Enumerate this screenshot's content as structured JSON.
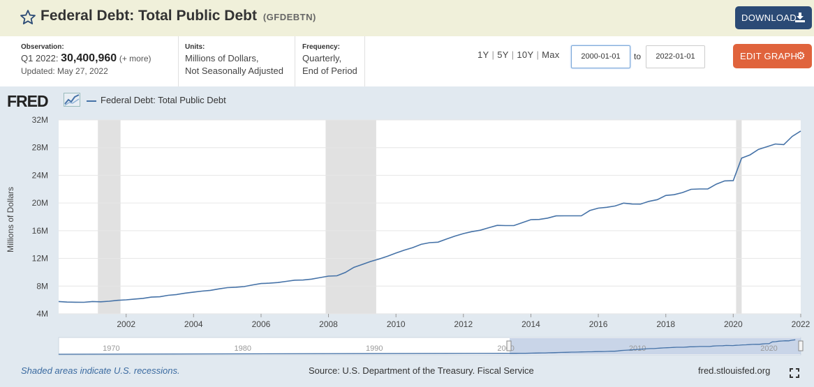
{
  "header": {
    "title": "Federal Debt: Total Public Debt",
    "series_id": "(GFDEBTN)",
    "download_label": "DOWNLOAD"
  },
  "meta": {
    "observation_label": "Observation:",
    "observation_period": "Q1 2022:",
    "observation_value": "30,400,960",
    "observation_more": "(+ more)",
    "updated": "Updated: May 27, 2022",
    "units_label": "Units:",
    "units_line1": "Millions of Dollars,",
    "units_line2": "Not Seasonally Adjusted",
    "frequency_label": "Frequency:",
    "frequency_line1": "Quarterly,",
    "frequency_line2": "End of Period"
  },
  "controls": {
    "range_1y": "1Y",
    "range_5y": "5Y",
    "range_10y": "10Y",
    "range_max": "Max",
    "date_from": "2000-01-01",
    "to_label": "to",
    "date_to": "2022-01-01",
    "edit_label": "EDIT GRAPH"
  },
  "graph": {
    "logo": "FRED",
    "legend": "Federal Debt: Total Public Debt",
    "line_color": "#4572a7",
    "recession_color": "#e1e1e1",
    "navigator_labels": [
      "1970",
      "1980",
      "1990",
      "2000",
      "2010",
      "2020"
    ]
  },
  "footer": {
    "note": "Shaded areas indicate U.S. recessions.",
    "source": "Source: U.S. Department of the Treasury. Fiscal Service",
    "url": "fred.stlouisfed.org"
  },
  "chart_data": {
    "type": "line",
    "ylabel": "Millions of Dollars",
    "ylim": [
      4,
      32
    ],
    "y_unit": "M",
    "yticks": [
      4,
      8,
      12,
      16,
      20,
      24,
      28,
      32
    ],
    "ytick_labels": [
      "4M",
      "8M",
      "12M",
      "16M",
      "20M",
      "24M",
      "28M",
      "32M"
    ],
    "xlim": [
      "2000-01-01",
      "2022-01-01"
    ],
    "xticks": [
      "2002",
      "2004",
      "2006",
      "2008",
      "2010",
      "2012",
      "2014",
      "2016",
      "2018",
      "2020",
      "2022"
    ],
    "grid": true,
    "recessions": [
      [
        "2001-03-01",
        "2001-11-01"
      ],
      [
        "2007-12-01",
        "2009-06-01"
      ],
      [
        "2020-02-01",
        "2020-04-01"
      ]
    ],
    "series": [
      {
        "name": "Federal Debt: Total Public Debt",
        "x": [
          "2000-01-01",
          "2000-04-01",
          "2000-07-01",
          "2000-10-01",
          "2001-01-01",
          "2001-04-01",
          "2001-07-01",
          "2001-10-01",
          "2002-01-01",
          "2002-04-01",
          "2002-07-01",
          "2002-10-01",
          "2003-01-01",
          "2003-04-01",
          "2003-07-01",
          "2003-10-01",
          "2004-01-01",
          "2004-04-01",
          "2004-07-01",
          "2004-10-01",
          "2005-01-01",
          "2005-04-01",
          "2005-07-01",
          "2005-10-01",
          "2006-01-01",
          "2006-04-01",
          "2006-07-01",
          "2006-10-01",
          "2007-01-01",
          "2007-04-01",
          "2007-07-01",
          "2007-10-01",
          "2008-01-01",
          "2008-04-01",
          "2008-07-01",
          "2008-10-01",
          "2009-01-01",
          "2009-04-01",
          "2009-07-01",
          "2009-10-01",
          "2010-01-01",
          "2010-04-01",
          "2010-07-01",
          "2010-10-01",
          "2011-01-01",
          "2011-04-01",
          "2011-07-01",
          "2011-10-01",
          "2012-01-01",
          "2012-04-01",
          "2012-07-01",
          "2012-10-01",
          "2013-01-01",
          "2013-04-01",
          "2013-07-01",
          "2013-10-01",
          "2014-01-01",
          "2014-04-01",
          "2014-07-01",
          "2014-10-01",
          "2015-01-01",
          "2015-04-01",
          "2015-07-01",
          "2015-10-01",
          "2016-01-01",
          "2016-04-01",
          "2016-07-01",
          "2016-10-01",
          "2017-01-01",
          "2017-04-01",
          "2017-07-01",
          "2017-10-01",
          "2018-01-01",
          "2018-04-01",
          "2018-07-01",
          "2018-10-01",
          "2019-01-01",
          "2019-04-01",
          "2019-07-01",
          "2019-10-01",
          "2020-01-01",
          "2020-04-01",
          "2020-07-01",
          "2020-10-01",
          "2021-01-01",
          "2021-04-01",
          "2021-07-01",
          "2021-10-01",
          "2022-01-01"
        ],
        "values": [
          5.77,
          5.69,
          5.67,
          5.66,
          5.77,
          5.73,
          5.81,
          5.94,
          6.01,
          6.13,
          6.23,
          6.41,
          6.46,
          6.67,
          6.78,
          6.98,
          7.13,
          7.27,
          7.38,
          7.6,
          7.78,
          7.84,
          7.93,
          8.17,
          8.37,
          8.42,
          8.51,
          8.68,
          8.85,
          8.87,
          9.01,
          9.23,
          9.44,
          9.49,
          9.96,
          10.7,
          11.13,
          11.55,
          11.91,
          12.31,
          12.77,
          13.2,
          13.56,
          14.03,
          14.27,
          14.34,
          14.79,
          15.22,
          15.58,
          15.86,
          16.07,
          16.43,
          16.77,
          16.74,
          16.74,
          17.16,
          17.6,
          17.63,
          17.82,
          18.14,
          18.15,
          18.15,
          18.15,
          18.92,
          19.26,
          19.38,
          19.57,
          19.98,
          19.85,
          19.84,
          20.24,
          20.49,
          21.09,
          21.2,
          21.52,
          21.98,
          22.03,
          22.03,
          22.72,
          23.2,
          23.23,
          26.48,
          26.95,
          27.75,
          28.13,
          28.53,
          28.43,
          29.62,
          30.4
        ]
      }
    ]
  }
}
